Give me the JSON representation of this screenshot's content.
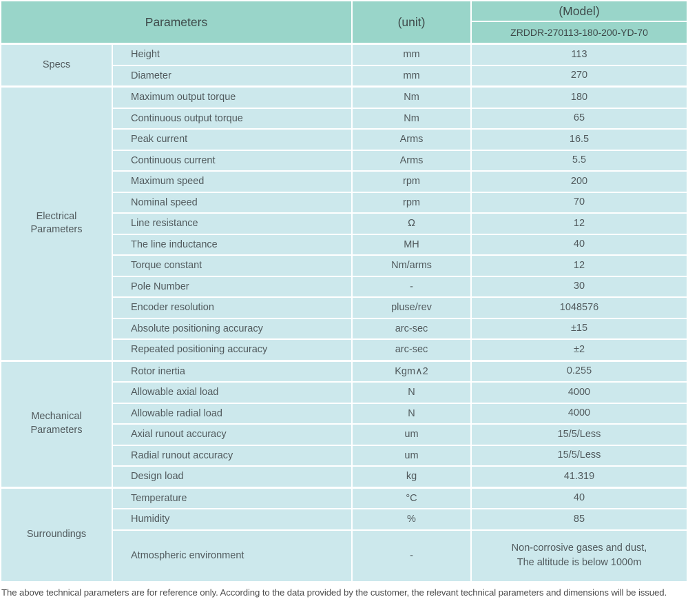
{
  "colors": {
    "header_teal": "#99d5c9",
    "cell_blue": "#cce8ec",
    "text_gray": "#515a5d"
  },
  "table": {
    "header": {
      "parameters_label": "Parameters",
      "unit_label": "(unit)",
      "model_label": "(Model)",
      "model_value": "ZRDDR-270113-180-200-YD-70"
    },
    "groups": [
      {
        "label": "Specs",
        "rows": [
          {
            "name": "Height",
            "unit": "mm",
            "value": "113"
          },
          {
            "name": "Diameter",
            "unit": "mm",
            "value": "270"
          }
        ]
      },
      {
        "label": "Electrical\nParameters",
        "rows": [
          {
            "name": "Maximum output torque",
            "unit": "Nm",
            "value": "180"
          },
          {
            "name": "Continuous output torque",
            "unit": "Nm",
            "value": "65"
          },
          {
            "name": "Peak current",
            "unit": "Arms",
            "value": "16.5"
          },
          {
            "name": "Continuous current",
            "unit": "Arms",
            "value": "5.5"
          },
          {
            "name": "Maximum speed",
            "unit": "rpm",
            "value": "200"
          },
          {
            "name": "Nominal speed",
            "unit": "rpm",
            "value": "70"
          },
          {
            "name": "Line resistance",
            "unit": "Ω",
            "value": "12"
          },
          {
            "name": "The line inductance",
            "unit": "MH",
            "value": "40"
          },
          {
            "name": "Torque constant",
            "unit": "Nm/arms",
            "value": "12"
          },
          {
            "name": "Pole Number",
            "unit": "-",
            "value": "30"
          },
          {
            "name": "Encoder resolution",
            "unit": "pluse/rev",
            "value": "1048576"
          },
          {
            "name": "Absolute positioning accuracy",
            "unit": "arc-sec",
            "value": "±15"
          },
          {
            "name": "Repeated positioning accuracy",
            "unit": "arc-sec",
            "value": "±2"
          }
        ]
      },
      {
        "label": "Mechanical\nParameters",
        "rows": [
          {
            "name": "Rotor inertia",
            "unit": "Kgm∧2",
            "value": "0.255"
          },
          {
            "name": "Allowable axial load",
            "unit": "N",
            "value": "4000"
          },
          {
            "name": "Allowable radial load",
            "unit": "N",
            "value": "4000"
          },
          {
            "name": "Axial runout accuracy",
            "unit": "um",
            "value": "15/5/Less"
          },
          {
            "name": "Radial runout accuracy",
            "unit": "um",
            "value": "15/5/Less"
          },
          {
            "name": "Design load",
            "unit": "kg",
            "value": "41.319"
          }
        ]
      },
      {
        "label": "Surroundings",
        "rows": [
          {
            "name": "Temperature",
            "unit": "°C",
            "value": "40"
          },
          {
            "name": "Humidity",
            "unit": "%",
            "value": "85"
          },
          {
            "name": "Atmospheric environment",
            "unit": "-",
            "value": "Non-corrosive gases and dust,\nThe altitude is below 1000m"
          }
        ]
      }
    ],
    "footnote": "The above technical parameters are for reference only. According to the data provided by the customer, the relevant technical parameters and dimensions will be issued."
  }
}
